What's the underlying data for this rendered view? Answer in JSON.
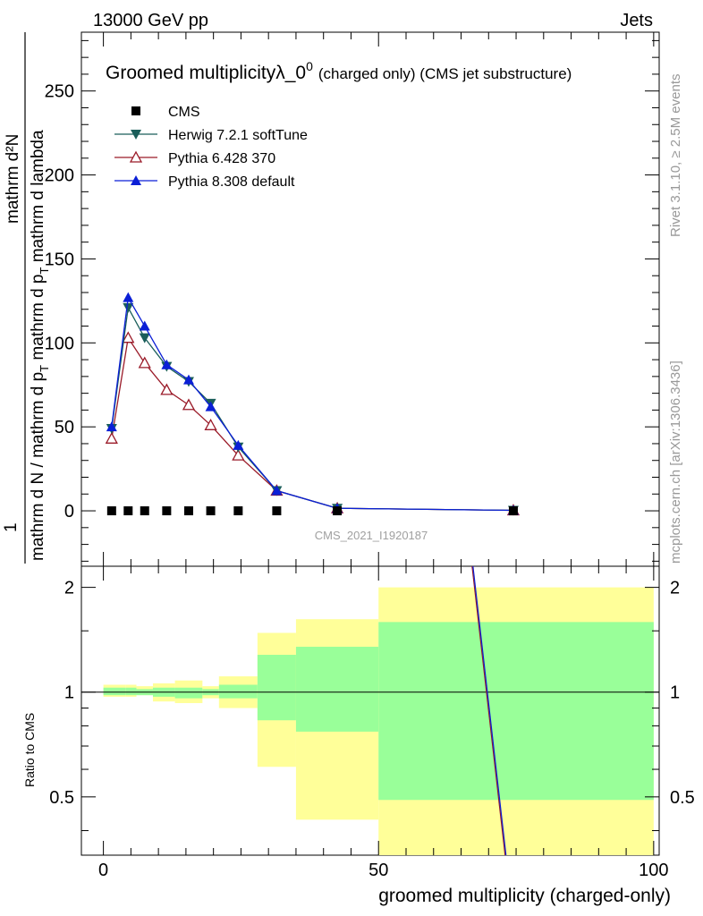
{
  "header": {
    "energy_label": "13000 GeV pp",
    "process_label": "Jets"
  },
  "side_labels": {
    "rivet": "Rivet 3.1.10, ≥ 2.5M events",
    "mcplots": "mcplots.cern.ch [arXiv:1306.3436]"
  },
  "watermark": "CMS_2021_I1920187",
  "chart_data": [
    {
      "id": "main",
      "type": "line",
      "title_main": "Groomed multiplicityλ_0",
      "title_sup": "0",
      "title_suffix": "(charged only) (CMS jet substructure)",
      "xlabel": "groomed multiplicity (charged-only)",
      "ylabel_numerator": "mathrm d²N",
      "ylabel_denominator": "mathrm d N / mathrm d p",
      "ylabel_denominator_sub": "T",
      "ylabel_denominator_tail": " mathrm d p",
      "ylabel_denominator_tail_sub": "T",
      "ylabel_denominator_end": " mathrm d lambda",
      "ylabel_prefix": "1",
      "ylabel_full": "mathrm d N / mathrm d p_T mathrm d p_T mathrm d lambda",
      "xlim": [
        -4,
        101
      ],
      "ylim": [
        -33,
        285
      ],
      "x_ticks": [
        0,
        50,
        100
      ],
      "y_ticks": [
        0,
        50,
        100,
        150,
        200,
        250
      ],
      "y_tick_labels": [
        "0",
        "50",
        "100",
        "150",
        "200",
        "250"
      ],
      "legend_position": "top-left",
      "series": [
        {
          "name": "CMS",
          "marker": "square",
          "color": "#000000",
          "x": [
            1.5,
            4.5,
            7.5,
            11.5,
            15.5,
            19.5,
            24.5,
            31.5,
            42.5,
            74.5
          ],
          "y": [
            0,
            0,
            0,
            0,
            0,
            0,
            0,
            0,
            0,
            0
          ]
        },
        {
          "name": "Herwig 7.2.1 softTune",
          "marker": "triangle-down",
          "color": "#1a5e5a",
          "x": [
            1.5,
            4.5,
            7.5,
            11.5,
            15.5,
            19.5,
            24.5,
            31.5,
            42.5,
            74.5
          ],
          "y": [
            49,
            121,
            103,
            86,
            77,
            64,
            38,
            12,
            1.5,
            0.3
          ]
        },
        {
          "name": "Pythia 6.428 370",
          "marker": "triangle-up-open",
          "color": "#9a1a28",
          "x": [
            1.5,
            4.5,
            7.5,
            11.5,
            15.5,
            19.5,
            24.5,
            31.5,
            42.5,
            74.5
          ],
          "y": [
            43,
            103,
            88,
            72,
            63,
            51,
            33,
            12,
            1.5,
            0.3
          ]
        },
        {
          "name": "Pythia 8.308 default",
          "marker": "triangle-up",
          "color": "#0b1fd6",
          "x": [
            1.5,
            4.5,
            7.5,
            11.5,
            15.5,
            19.5,
            24.5,
            31.5,
            42.5,
            74.5
          ],
          "y": [
            50,
            127,
            110,
            87,
            78,
            62,
            39,
            12,
            1.5,
            0.3
          ]
        }
      ]
    },
    {
      "id": "ratio",
      "type": "area",
      "ylabel": "Ratio to CMS",
      "xlim": [
        -4,
        101
      ],
      "ylim": [
        0.34,
        2.3
      ],
      "x_ticks": [
        0,
        50,
        100
      ],
      "x_tick_labels": [
        "0",
        "50",
        "100"
      ],
      "y_ticks": [
        0.5,
        1,
        2
      ],
      "y_tick_labels": [
        "0.5",
        "1",
        "2"
      ],
      "reference_line": 1,
      "bins": [
        {
          "lo": 0,
          "hi": 4,
          "stat_lo": 0.98,
          "stat_hi": 1.03,
          "tot_lo": 0.97,
          "tot_hi": 1.05
        },
        {
          "lo": 4,
          "hi": 6,
          "stat_lo": 0.98,
          "stat_hi": 1.03,
          "tot_lo": 0.97,
          "tot_hi": 1.05
        },
        {
          "lo": 6,
          "hi": 9,
          "stat_lo": 0.98,
          "stat_hi": 1.02,
          "tot_lo": 0.98,
          "tot_hi": 1.04
        },
        {
          "lo": 9,
          "hi": 13,
          "stat_lo": 0.97,
          "stat_hi": 1.03,
          "tot_lo": 0.94,
          "tot_hi": 1.06
        },
        {
          "lo": 13,
          "hi": 18,
          "stat_lo": 0.96,
          "stat_hi": 1.03,
          "tot_lo": 0.93,
          "tot_hi": 1.08
        },
        {
          "lo": 18,
          "hi": 21,
          "stat_lo": 0.98,
          "stat_hi": 1.02,
          "tot_lo": 0.96,
          "tot_hi": 1.04
        },
        {
          "lo": 21,
          "hi": 28,
          "stat_lo": 0.96,
          "stat_hi": 1.05,
          "tot_lo": 0.9,
          "tot_hi": 1.11
        },
        {
          "lo": 28,
          "hi": 35,
          "stat_lo": 0.83,
          "stat_hi": 1.28,
          "tot_lo": 0.61,
          "tot_hi": 1.48
        },
        {
          "lo": 35,
          "hi": 50,
          "stat_lo": 0.77,
          "stat_hi": 1.35,
          "tot_lo": 0.43,
          "tot_hi": 1.62
        },
        {
          "lo": 50,
          "hi": 100,
          "stat_lo": 0.49,
          "stat_hi": 1.59,
          "tot_lo": 0.34,
          "tot_hi": 2.0
        }
      ],
      "mc_ratio_line": {
        "x": [
          67.0,
          73.0
        ],
        "y": [
          2.3,
          0.34
        ]
      },
      "stat_color": "#99ff99",
      "total_color": "#ffff99"
    }
  ]
}
